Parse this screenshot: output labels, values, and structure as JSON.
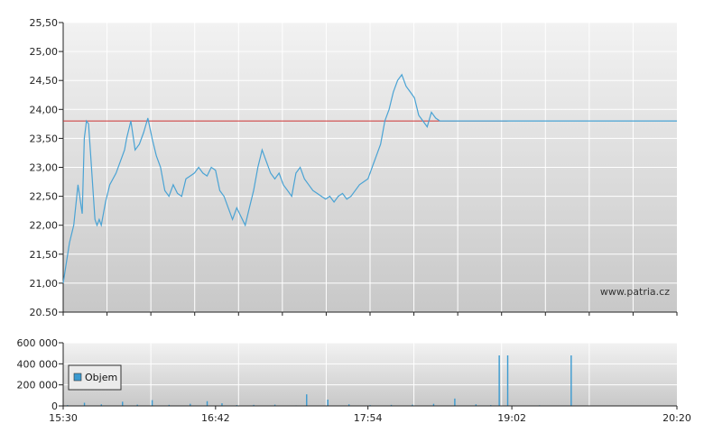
{
  "watermark": "www.patria.cz",
  "colors": {
    "price_line": "#4aa3d4",
    "reference_line": "#cc3333",
    "volume_bar": "#3a9ad0",
    "legend_swatch": "#3a9ad0"
  },
  "chart_data": [
    {
      "type": "line",
      "x_unit": "time",
      "xlim": [
        "15:30",
        "20:20"
      ],
      "x_ticks": [
        "15:30",
        "16:42",
        "17:54",
        "19:02",
        "20:20"
      ],
      "ylim": [
        20.5,
        25.5
      ],
      "y_ticks": [
        "20.50",
        "21,00",
        "21,50",
        "22,00",
        "22,50",
        "23,00",
        "23,50",
        "24,00",
        "24,50",
        "25,00",
        "25,50"
      ],
      "y_tick_values": [
        20.5,
        21,
        21.5,
        22,
        22.5,
        23,
        23.5,
        24,
        24.5,
        25,
        25.5
      ],
      "grid": true,
      "reference_line": {
        "y": 23.8
      },
      "series": [
        {
          "x": [
            "15:30",
            "15:33",
            "15:35",
            "15:37",
            "15:39",
            "15:40",
            "15:41",
            "15:42",
            "15:43",
            "15:45",
            "15:46",
            "15:47",
            "15:48",
            "15:50",
            "15:52",
            "15:55",
            "15:57",
            "15:59",
            "16:00",
            "16:02",
            "16:04",
            "16:06",
            "16:08",
            "16:10",
            "16:12",
            "16:14",
            "16:16",
            "16:18",
            "16:20",
            "16:22",
            "16:24",
            "16:26",
            "16:28",
            "16:30",
            "16:32",
            "16:34",
            "16:36",
            "16:38",
            "16:40",
            "16:42",
            "16:44",
            "16:46",
            "16:48",
            "16:50",
            "16:52",
            "16:54",
            "16:56",
            "16:58",
            "17:00",
            "17:02",
            "17:04",
            "17:06",
            "17:08",
            "17:10",
            "17:12",
            "17:14",
            "17:16",
            "17:18",
            "17:20",
            "17:22",
            "17:24",
            "17:26",
            "17:28",
            "17:30",
            "17:32",
            "17:34",
            "17:36",
            "17:38",
            "17:40",
            "17:42",
            "17:44",
            "17:46",
            "17:48",
            "17:50",
            "17:52",
            "17:54",
            "17:56",
            "17:58",
            "18:00",
            "18:02",
            "18:04",
            "18:06",
            "18:08",
            "18:10",
            "18:12",
            "18:14",
            "18:16",
            "18:18",
            "18:20",
            "18:22",
            "18:24",
            "18:26",
            "18:28",
            "18:30",
            "18:32",
            "18:34",
            "18:36",
            "18:38",
            "18:40",
            "18:42",
            "18:44",
            "18:46",
            "18:48",
            "18:50",
            "18:52",
            "18:54",
            "18:56",
            "18:58",
            "19:00",
            "20:20"
          ],
          "y": [
            21.0,
            21.7,
            22.0,
            22.7,
            22.2,
            23.5,
            23.8,
            23.75,
            23.2,
            22.1,
            22.0,
            22.1,
            22.0,
            22.4,
            22.7,
            22.9,
            23.1,
            23.3,
            23.5,
            23.8,
            23.3,
            23.4,
            23.6,
            23.85,
            23.5,
            23.2,
            23.0,
            22.6,
            22.5,
            22.7,
            22.55,
            22.5,
            22.8,
            22.85,
            22.9,
            23.0,
            22.9,
            22.85,
            23.0,
            22.95,
            22.6,
            22.5,
            22.3,
            22.1,
            22.3,
            22.15,
            22.0,
            22.3,
            22.6,
            23.0,
            23.3,
            23.1,
            22.9,
            22.8,
            22.9,
            22.7,
            22.6,
            22.5,
            22.9,
            23.0,
            22.8,
            22.7,
            22.6,
            22.55,
            22.5,
            22.45,
            22.5,
            22.4,
            22.5,
            22.55,
            22.45,
            22.5,
            22.6,
            22.7,
            22.75,
            22.8,
            23.0,
            23.2,
            23.4,
            23.8,
            24.0,
            24.3,
            24.5,
            24.6,
            24.4,
            24.3,
            24.2,
            23.9,
            23.8,
            23.7,
            23.95,
            23.85,
            23.8,
            23.8,
            23.8,
            23.8,
            23.8,
            23.8,
            23.8,
            23.8,
            23.8,
            23.8,
            23.8,
            23.8,
            23.8,
            23.8,
            23.8,
            23.8,
            23.8,
            23.8
          ]
        }
      ]
    },
    {
      "type": "bar",
      "x_unit": "time",
      "xlim": [
        "15:30",
        "20:20"
      ],
      "ylim": [
        0,
        600000
      ],
      "y_ticks": [
        "0",
        "200 000",
        "400 000",
        "600 000"
      ],
      "y_tick_values": [
        0,
        200000,
        400000,
        600000
      ],
      "grid": true,
      "legend": {
        "entries": [
          "Objem"
        ],
        "placement": "top-left"
      },
      "series": [
        {
          "name": "Objem",
          "x": [
            "15:32",
            "15:40",
            "15:48",
            "15:58",
            "16:05",
            "16:12",
            "16:20",
            "16:30",
            "16:38",
            "16:45",
            "16:52",
            "17:00",
            "17:10",
            "17:20",
            "17:25",
            "17:35",
            "17:45",
            "17:55",
            "18:05",
            "18:15",
            "18:25",
            "18:35",
            "18:45",
            "18:52",
            "18:56",
            "19:00",
            "19:15",
            "19:30"
          ],
          "values": [
            8000,
            30000,
            15000,
            40000,
            12000,
            55000,
            10000,
            20000,
            45000,
            25000,
            8000,
            10000,
            12000,
            5000,
            110000,
            60000,
            15000,
            8000,
            10000,
            12000,
            20000,
            70000,
            15000,
            8000,
            480000,
            480000,
            6000,
            480000
          ]
        }
      ]
    }
  ]
}
